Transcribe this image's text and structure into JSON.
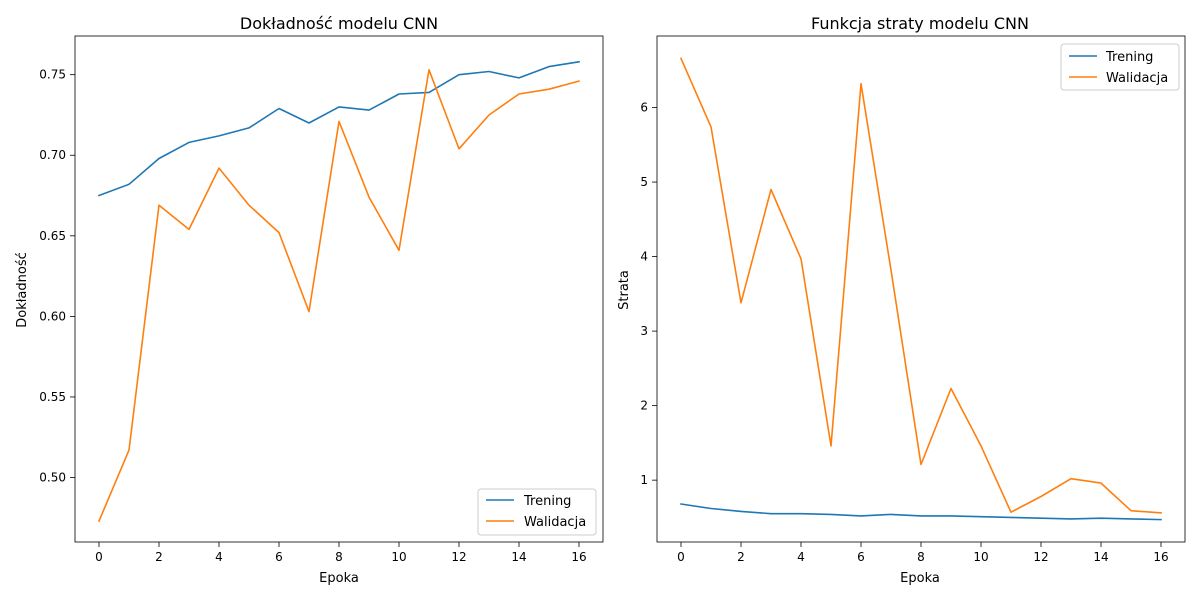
{
  "chart_data": [
    {
      "type": "line",
      "title": "Dokładność modelu CNN",
      "xlabel": "Epoka",
      "ylabel": "Dokładność",
      "xlim": [
        -0.8,
        16.8
      ],
      "ylim": [
        0.46,
        0.774
      ],
      "xticks": [
        0,
        2,
        4,
        6,
        8,
        10,
        12,
        14,
        16
      ],
      "yticks": [
        0.5,
        0.55,
        0.6,
        0.65,
        0.7,
        0.75
      ],
      "ytick_labels": [
        "0.50",
        "0.55",
        "0.60",
        "0.65",
        "0.70",
        "0.75"
      ],
      "legend_position": "lower right",
      "x": [
        0,
        1,
        2,
        3,
        4,
        5,
        6,
        7,
        8,
        9,
        10,
        11,
        12,
        13,
        14,
        15,
        16
      ],
      "series": [
        {
          "name": "Trening",
          "color": "#1f77b4",
          "values": [
            0.675,
            0.682,
            0.698,
            0.708,
            0.712,
            0.717,
            0.729,
            0.72,
            0.73,
            0.728,
            0.738,
            0.739,
            0.75,
            0.752,
            0.748,
            0.755,
            0.758
          ]
        },
        {
          "name": "Walidacja",
          "color": "#ff7f0e",
          "values": [
            0.473,
            0.517,
            0.669,
            0.654,
            0.692,
            0.669,
            0.652,
            0.603,
            0.721,
            0.674,
            0.641,
            0.753,
            0.704,
            0.725,
            0.738,
            0.741,
            0.746
          ]
        }
      ]
    },
    {
      "type": "line",
      "title": "Funkcja straty modelu CNN",
      "xlabel": "Epoka",
      "ylabel": "Strata",
      "xlim": [
        -0.8,
        16.8
      ],
      "ylim": [
        0.17,
        6.96
      ],
      "xticks": [
        0,
        2,
        4,
        6,
        8,
        10,
        12,
        14,
        16
      ],
      "yticks": [
        1,
        2,
        3,
        4,
        5,
        6
      ],
      "ytick_labels": [
        "1",
        "2",
        "3",
        "4",
        "5",
        "6"
      ],
      "legend_position": "upper right",
      "x": [
        0,
        1,
        2,
        3,
        4,
        5,
        6,
        7,
        8,
        9,
        10,
        11,
        12,
        13,
        14,
        15,
        16
      ],
      "series": [
        {
          "name": "Trening",
          "color": "#1f77b4",
          "values": [
            0.68,
            0.62,
            0.58,
            0.55,
            0.55,
            0.54,
            0.52,
            0.54,
            0.52,
            0.52,
            0.51,
            0.5,
            0.49,
            0.48,
            0.49,
            0.48,
            0.47
          ]
        },
        {
          "name": "Walidacja",
          "color": "#ff7f0e",
          "values": [
            6.66,
            5.74,
            3.38,
            4.9,
            3.97,
            1.46,
            6.32,
            3.82,
            1.21,
            2.23,
            1.46,
            0.57,
            0.78,
            1.02,
            0.96,
            0.59,
            0.56
          ]
        }
      ]
    }
  ]
}
